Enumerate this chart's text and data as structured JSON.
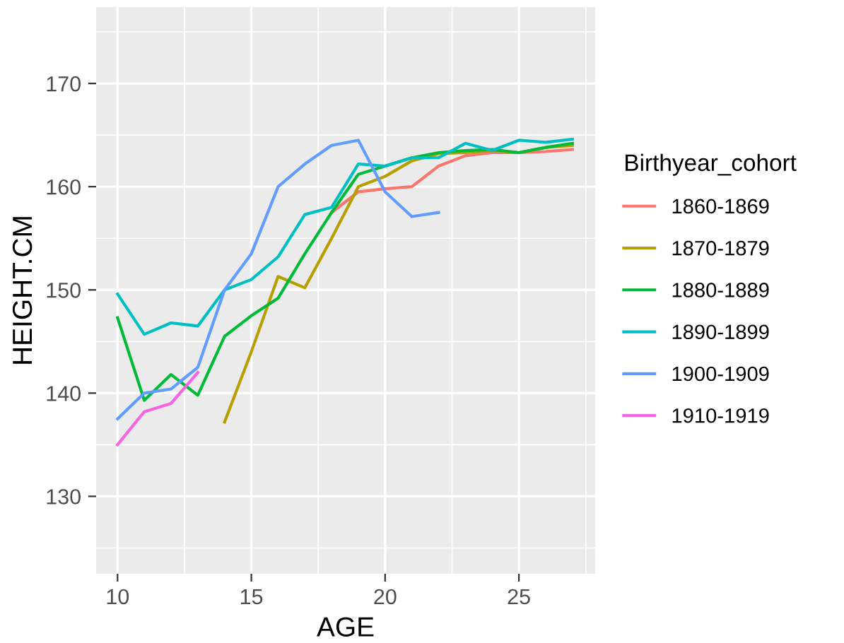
{
  "chart_data": {
    "type": "line",
    "xlabel": "AGE",
    "ylabel": "HEIGHT.CM",
    "legend_title": "Birthyear_cohort",
    "legend": "right",
    "grid": true,
    "xlim": [
      9.2,
      27.85
    ],
    "xticks": [
      10,
      15,
      20,
      25
    ],
    "ylim": [
      122.5,
      177.4
    ],
    "yticks": [
      130,
      140,
      150,
      160,
      170
    ],
    "series": [
      {
        "name": "1860-1869",
        "color": "#F8766D",
        "x": [
          18,
          19,
          20,
          21,
          22,
          23,
          24,
          25,
          26,
          27
        ],
        "values": [
          157.5,
          159.5,
          159.8,
          160,
          162,
          163,
          163.3,
          163.3,
          163.4,
          163.6
        ]
      },
      {
        "name": "1870-1879",
        "color": "#B79F00",
        "x": [
          14,
          15,
          16,
          17,
          18,
          19,
          20,
          21,
          22,
          23,
          24,
          25,
          26,
          27
        ],
        "values": [
          137.2,
          144,
          151.3,
          150.2,
          155,
          160,
          161,
          162.5,
          163.2,
          163.3,
          163.5,
          163.3,
          163.8,
          164
        ]
      },
      {
        "name": "1880-1889",
        "color": "#00BA38",
        "x": [
          10,
          11,
          12,
          13,
          14,
          15,
          16,
          17,
          18,
          19,
          20,
          21,
          22,
          23,
          24,
          25,
          26,
          27
        ],
        "values": [
          147.3,
          139.3,
          141.8,
          139.8,
          145.5,
          147.5,
          149.2,
          153.5,
          157.5,
          161.2,
          162,
          162.8,
          163.3,
          163.5,
          163.6,
          163.3,
          163.8,
          164.2
        ]
      },
      {
        "name": "1890-1899",
        "color": "#00BFC4",
        "x": [
          10,
          11,
          12,
          13,
          14,
          15,
          16,
          17,
          18,
          19,
          20,
          21,
          22,
          23,
          24,
          25,
          26,
          27
        ],
        "values": [
          149.6,
          145.7,
          146.8,
          146.5,
          150,
          151,
          153.2,
          157.3,
          158,
          162.2,
          162,
          162.8,
          162.8,
          164.2,
          163.5,
          164.5,
          164.3,
          164.6
        ]
      },
      {
        "name": "1900-1909",
        "color": "#619CFF",
        "x": [
          10,
          11,
          12,
          13,
          14,
          15,
          16,
          17,
          18,
          19,
          20,
          21,
          22
        ],
        "values": [
          137.5,
          140,
          140.4,
          142.5,
          150,
          153.5,
          160,
          162.2,
          164,
          164.5,
          159.5,
          157.1,
          157.5
        ]
      },
      {
        "name": "1910-1919",
        "color": "#F564E3",
        "x": [
          10,
          11,
          12,
          13
        ],
        "values": [
          135,
          138.2,
          139,
          142
        ]
      }
    ]
  }
}
